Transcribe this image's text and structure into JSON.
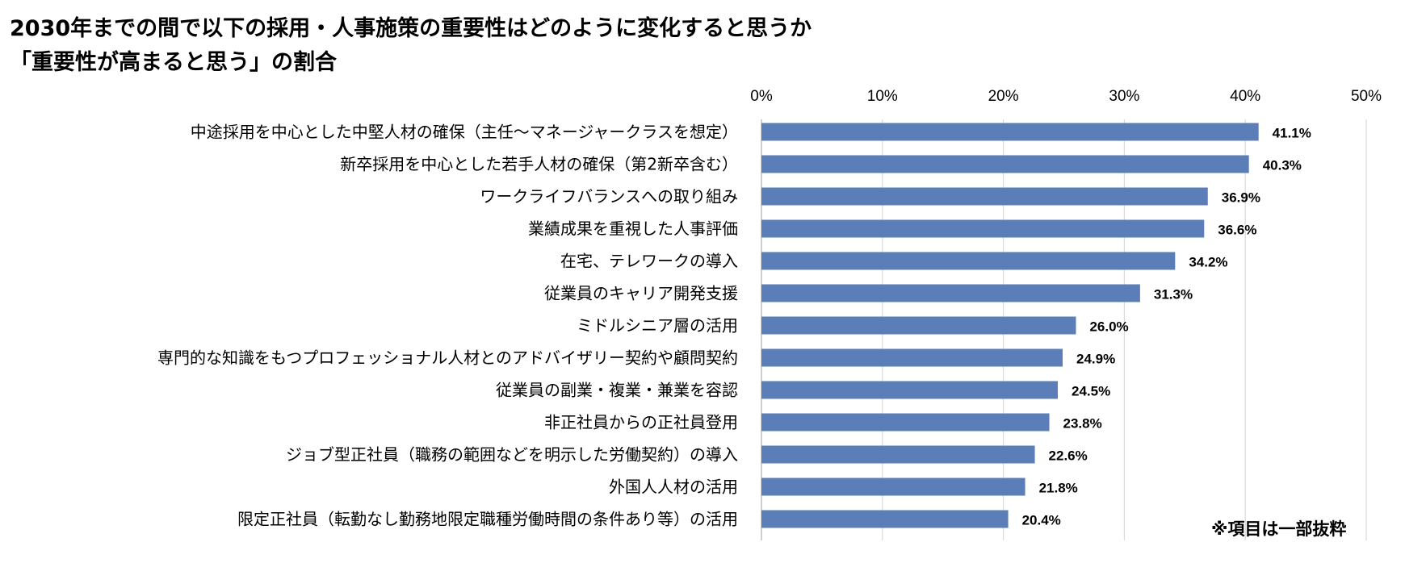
{
  "title": {
    "line1": "2030年までの間で以下の採用・人事施策の重要性はどのように変化すると思うか",
    "line2": "「重要性が高まると思う」の割合"
  },
  "note": "※項目は一部抜粋",
  "chart_data": {
    "type": "bar",
    "orientation": "horizontal",
    "categories": [
      "中途採用を中心とした中堅人材の確保（主任～マネージャークラスを想定）",
      "新卒採用を中心とした若手人材の確保（第2新卒含む）",
      "ワークライフバランスへの取り組み",
      "業績成果を重視した人事評価",
      "在宅、テレワークの導入",
      "従業員のキャリア開発支援",
      "ミドルシニア層の活用",
      "専門的な知識をもつプロフェッショナル人材とのアドバイザリー契約や顧問契約",
      "従業員の副業・複業・兼業を容認",
      "非正社員からの正社員登用",
      "ジョブ型正社員（職務の範囲などを明示した労働契約）の導入",
      "外国人人材の活用",
      "限定正社員（転勤なし勤務地限定職種労働時間の条件あり等）の活用"
    ],
    "values": [
      41.1,
      40.3,
      36.9,
      36.6,
      34.2,
      31.3,
      26.0,
      24.9,
      24.5,
      23.8,
      22.6,
      21.8,
      20.4
    ],
    "value_labels": [
      "41.1%",
      "40.3%",
      "36.9%",
      "36.6%",
      "34.2%",
      "31.3%",
      "26.0%",
      "24.9%",
      "24.5%",
      "23.8%",
      "22.6%",
      "21.8%",
      "20.4%"
    ],
    "xlim": [
      0,
      50
    ],
    "x_ticks": [
      0,
      10,
      20,
      30,
      40,
      50
    ],
    "x_tick_labels": [
      "0%",
      "10%",
      "20%",
      "30%",
      "40%",
      "50%"
    ],
    "x_axis_position": "top",
    "grid": true,
    "legend": "none",
    "bar_color": "#5B7DB8",
    "grid_color": "#D9D9D9"
  }
}
